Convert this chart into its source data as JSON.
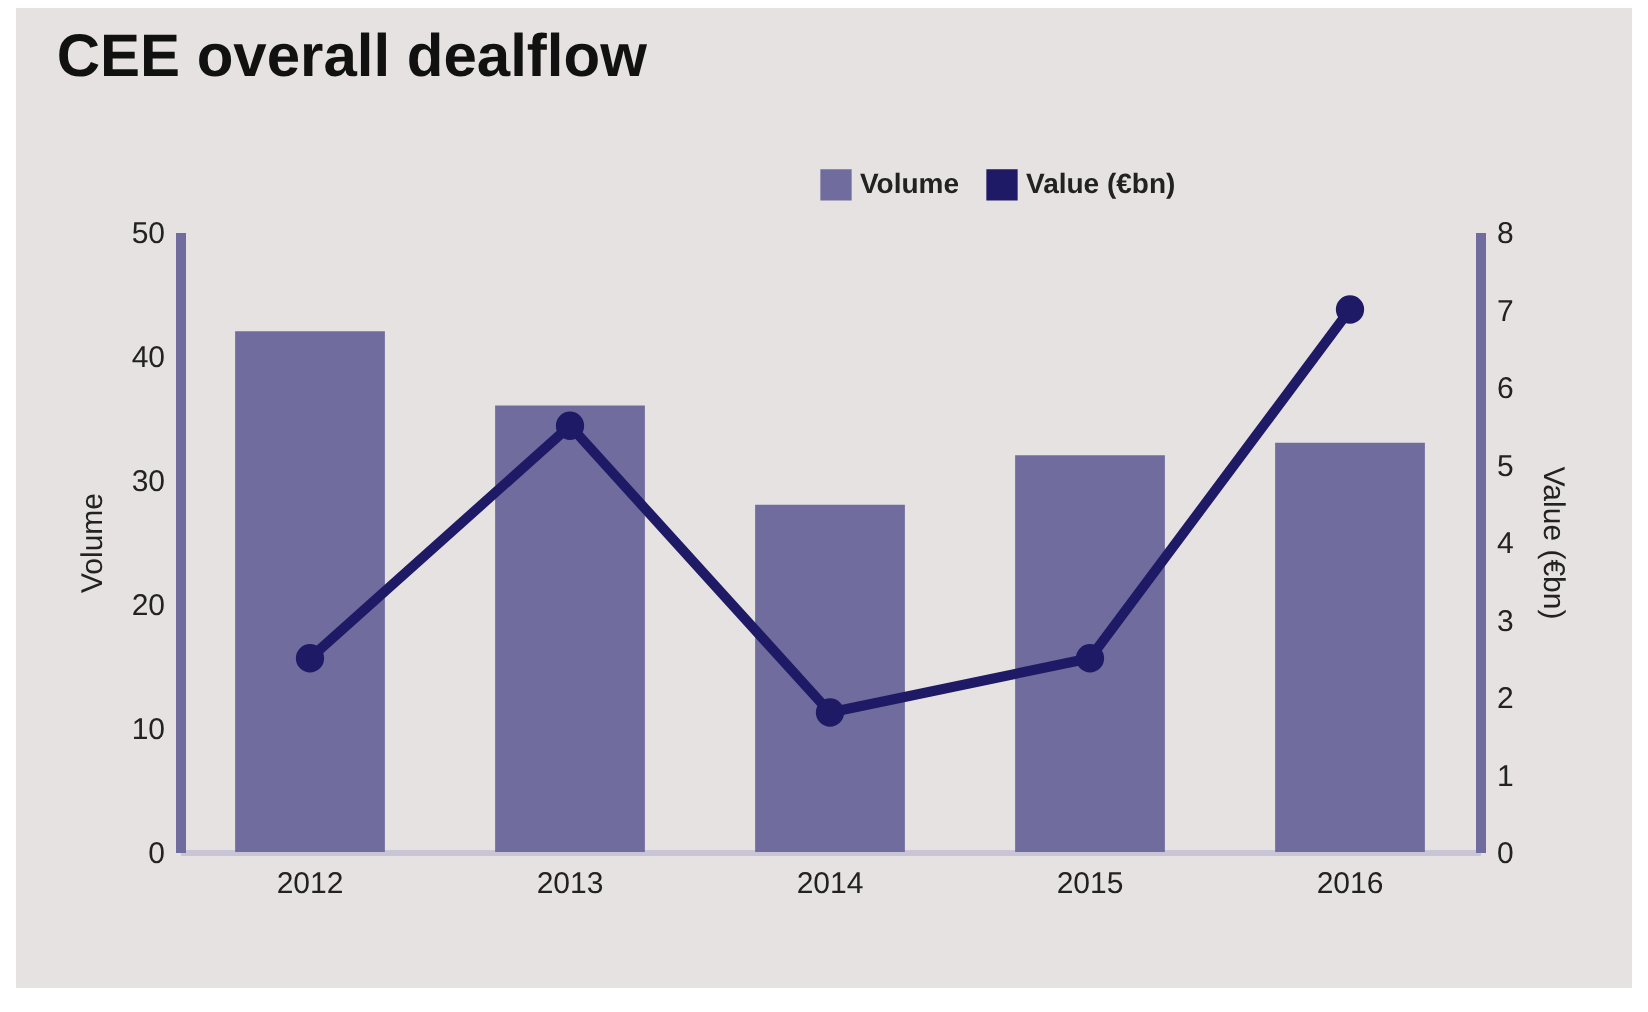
{
  "chart_data": {
    "type": "bar",
    "title": "CEE overall dealflow",
    "categories": [
      "2012",
      "2013",
      "2014",
      "2015",
      "2016"
    ],
    "series": [
      {
        "name": "Volume",
        "color": "#706c9e",
        "values": [
          42,
          36,
          28,
          32,
          33
        ]
      },
      {
        "name": "Value (€bn)",
        "type": "line",
        "axis": "y2",
        "color": "#1e1a66",
        "values": [
          2.5,
          5.5,
          1.8,
          2.5,
          7.0
        ]
      }
    ],
    "ylabel": "Volume",
    "y2label": "Value (€bn)",
    "ylim": [
      0,
      50
    ],
    "yticks": [
      0,
      10,
      20,
      30,
      40,
      50
    ],
    "y2lim": [
      0,
      8
    ],
    "y2ticks": [
      0,
      1,
      2,
      3,
      4,
      5,
      6,
      7,
      8
    ],
    "marker": "circle",
    "legend": "top right",
    "grid": false
  }
}
